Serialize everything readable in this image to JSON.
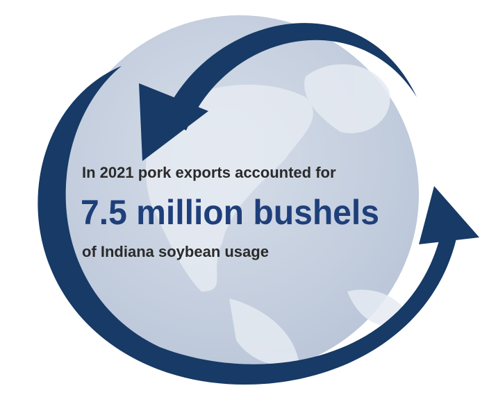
{
  "infographic": {
    "line1": "In 2021 pork exports accounted for",
    "highlight": "7.5 million bushels",
    "line3": "of Indiana soybean usage"
  }
}
